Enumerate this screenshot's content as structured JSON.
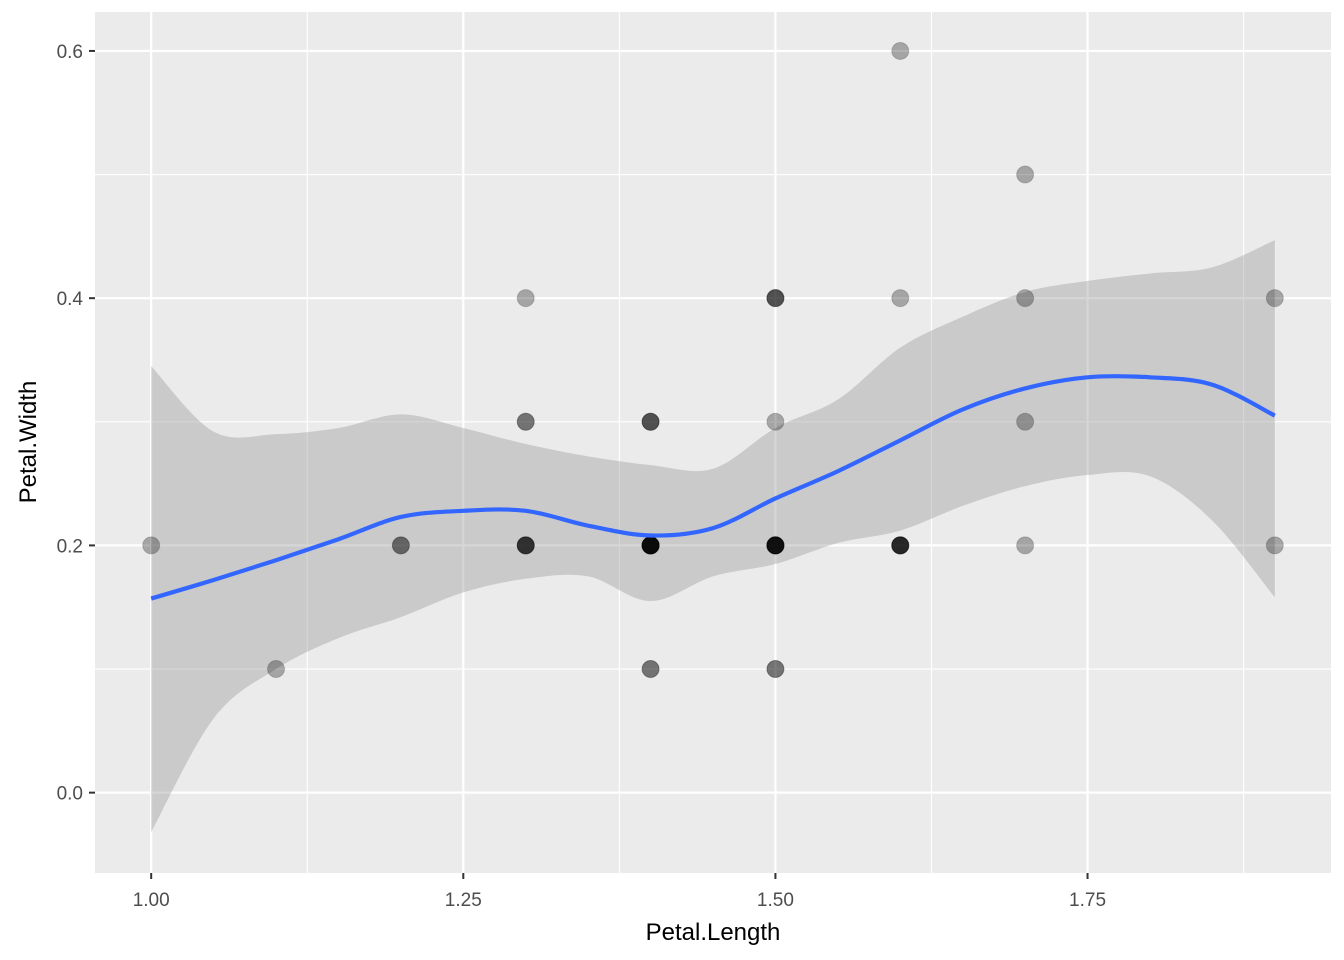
{
  "chart_data": {
    "type": "scatter",
    "xlabel": "Petal.Length",
    "ylabel": "Petal.Width",
    "xlim": [
      0.955,
      1.945
    ],
    "ylim": [
      -0.065,
      0.6315
    ],
    "x_ticks": [
      1.0,
      1.25,
      1.5,
      1.75
    ],
    "x_tick_labels": [
      "1.00",
      "1.25",
      "1.50",
      "1.75"
    ],
    "y_ticks": [
      0.0,
      0.2,
      0.4,
      0.6
    ],
    "y_tick_labels": [
      "0.0",
      "0.2",
      "0.4",
      "0.6"
    ],
    "grid": true,
    "colors": {
      "panel": "#ebebeb",
      "grid": "#ffffff",
      "point": "#000000",
      "smooth_line": "#3366ff",
      "confidence_band": "#999999"
    },
    "points": [
      {
        "x": 1.0,
        "y": 0.2,
        "count": 1
      },
      {
        "x": 1.1,
        "y": 0.1,
        "count": 1
      },
      {
        "x": 1.2,
        "y": 0.2,
        "count": 2
      },
      {
        "x": 1.3,
        "y": 0.4,
        "count": 1
      },
      {
        "x": 1.3,
        "y": 0.3,
        "count": 2
      },
      {
        "x": 1.3,
        "y": 0.2,
        "count": 4
      },
      {
        "x": 1.4,
        "y": 0.3,
        "count": 3
      },
      {
        "x": 1.4,
        "y": 0.2,
        "count": 8
      },
      {
        "x": 1.4,
        "y": 0.1,
        "count": 2
      },
      {
        "x": 1.5,
        "y": 0.4,
        "count": 3
      },
      {
        "x": 1.5,
        "y": 0.3,
        "count": 1
      },
      {
        "x": 1.5,
        "y": 0.2,
        "count": 7
      },
      {
        "x": 1.5,
        "y": 0.1,
        "count": 2
      },
      {
        "x": 1.6,
        "y": 0.6,
        "count": 1
      },
      {
        "x": 1.6,
        "y": 0.4,
        "count": 1
      },
      {
        "x": 1.6,
        "y": 0.2,
        "count": 5
      },
      {
        "x": 1.7,
        "y": 0.5,
        "count": 1
      },
      {
        "x": 1.7,
        "y": 0.4,
        "count": 1
      },
      {
        "x": 1.7,
        "y": 0.3,
        "count": 1
      },
      {
        "x": 1.7,
        "y": 0.2,
        "count": 1
      },
      {
        "x": 1.9,
        "y": 0.4,
        "count": 1
      },
      {
        "x": 1.9,
        "y": 0.2,
        "count": 1
      }
    ],
    "smooth": {
      "method": "loess",
      "x": [
        1.0,
        1.05,
        1.1,
        1.15,
        1.2,
        1.25,
        1.3,
        1.35,
        1.4,
        1.45,
        1.5,
        1.55,
        1.6,
        1.65,
        1.7,
        1.75,
        1.8,
        1.85,
        1.9
      ],
      "y": [
        0.157,
        0.172,
        0.188,
        0.205,
        0.223,
        0.228,
        0.228,
        0.216,
        0.208,
        0.214,
        0.238,
        0.26,
        0.285,
        0.31,
        0.327,
        0.336,
        0.336,
        0.33,
        0.305
      ],
      "lower": [
        -0.032,
        0.06,
        0.1,
        0.125,
        0.142,
        0.162,
        0.173,
        0.175,
        0.155,
        0.175,
        0.185,
        0.202,
        0.212,
        0.232,
        0.248,
        0.257,
        0.256,
        0.22,
        0.158
      ],
      "upper": [
        0.345,
        0.292,
        0.29,
        0.295,
        0.306,
        0.295,
        0.282,
        0.272,
        0.265,
        0.262,
        0.295,
        0.318,
        0.36,
        0.385,
        0.405,
        0.414,
        0.42,
        0.425,
        0.447
      ]
    }
  }
}
